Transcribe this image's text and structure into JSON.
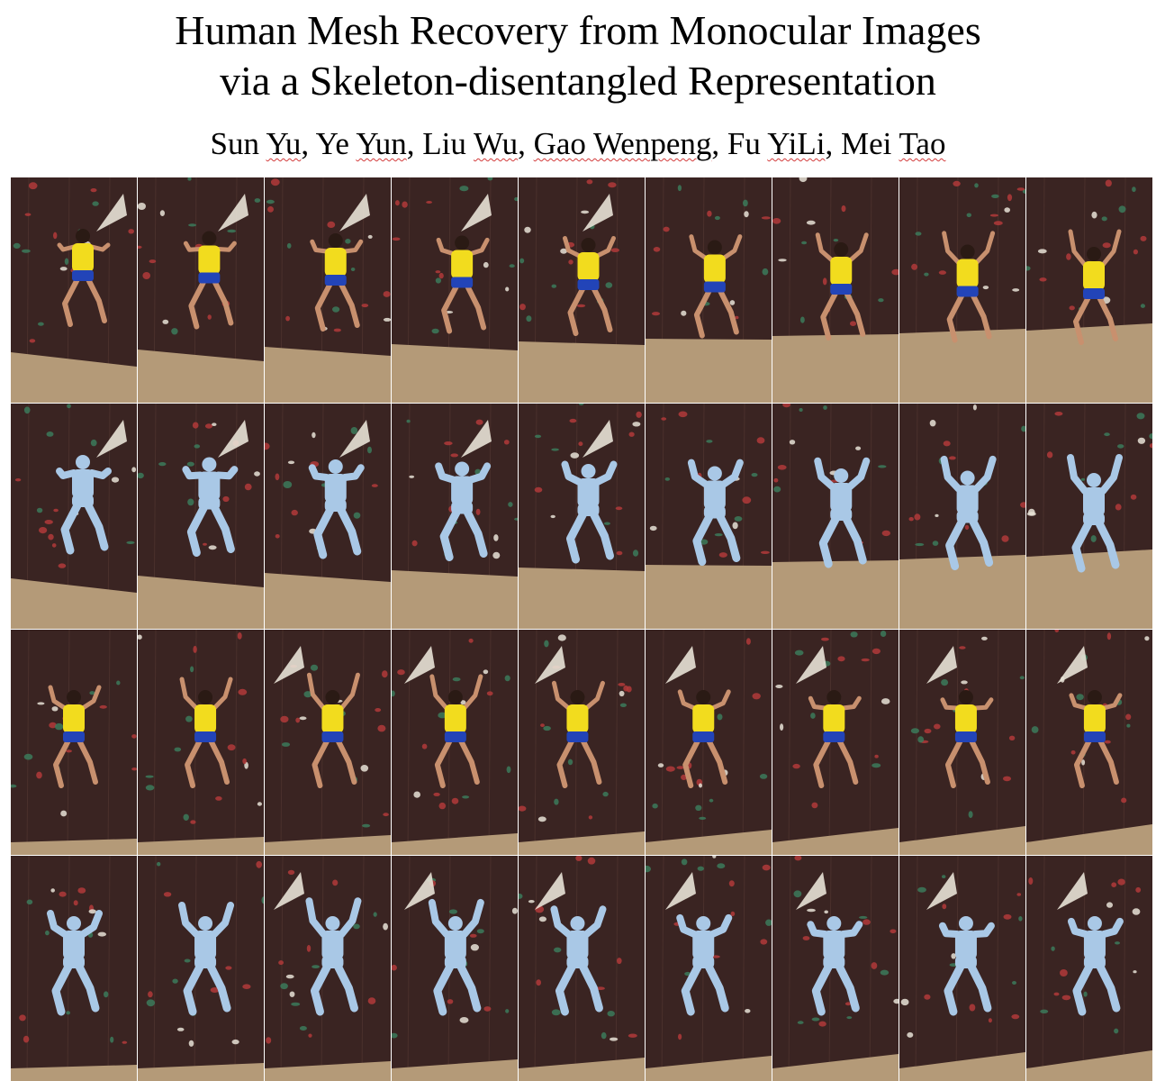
{
  "figure": {
    "title_lines": [
      "Human Mesh Recovery from Monocular Images",
      "via a Skeleton-disentangled Representation"
    ],
    "authors": [
      {
        "name": "Sun Yu",
        "underlined": "Yu"
      },
      {
        "name": "Ye Yun",
        "underlined": "Yun"
      },
      {
        "name": "Liu Wu",
        "underlined": "Wu"
      },
      {
        "name": "Gao Wenpeng",
        "underlined": "Gao Wenpeng"
      },
      {
        "name": "Fu YiLi",
        "underlined": "YiLi"
      },
      {
        "name": "Mei Tao",
        "underlined": "Tao"
      }
    ],
    "panels": {
      "rows": [
        {
          "kind": "photo",
          "sequence": 1
        },
        {
          "kind": "mesh",
          "sequence": 1
        },
        {
          "kind": "photo",
          "sequence": 2
        },
        {
          "kind": "mesh",
          "sequence": 2
        }
      ],
      "frames_per_row": 9,
      "colors": {
        "wall": "#3a2422",
        "wall_light": "#4a302c",
        "floor": "#b49a78",
        "shirt": "#f2dc1e",
        "shorts": "#2244b8",
        "skin": "#c8906e",
        "mesh": "#a9c8e6",
        "hold_red": "#b23a3a",
        "hold_green": "#3c7a5a",
        "hold_white": "#e8e2d6"
      }
    }
  }
}
